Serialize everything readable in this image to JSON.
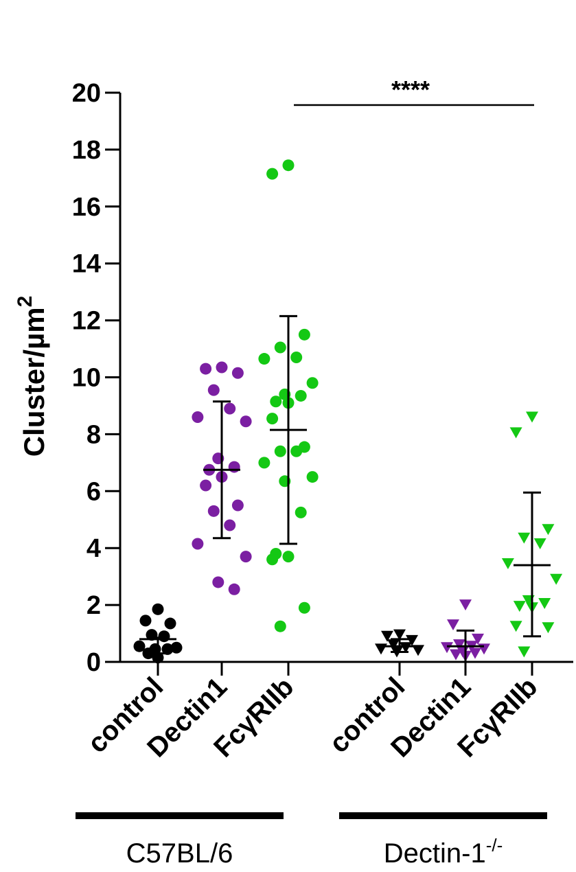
{
  "chart_data": {
    "type": "scatter",
    "ylabel": "Cluster/µm",
    "ylabel_superscript": "2",
    "ylim": [
      0,
      20
    ],
    "yticks": [
      "0",
      "2",
      "4",
      "6",
      "8",
      "10",
      "12",
      "14",
      "16",
      "18",
      "20"
    ],
    "significance": {
      "label": "****",
      "from_category": "FcγRIIb (C57BL/6)",
      "to_category": "FcγRIIb (Dectin-1-/-)"
    },
    "groups": [
      {
        "name": "C57BL/6",
        "superscript": ""
      },
      {
        "name": "Dectin-1",
        "superscript": "-/-"
      }
    ],
    "series": [
      {
        "name": "control",
        "group": "C57BL/6",
        "marker": "circle",
        "color": "#000000",
        "mean": 0.8,
        "sd_low": 0.3,
        "sd_high": 0.85,
        "values": [
          1.85,
          1.45,
          1.35,
          0.95,
          0.9,
          0.55,
          0.5,
          0.45,
          0.45,
          0.3,
          0.15
        ]
      },
      {
        "name": "Dectin1",
        "group": "C57BL/6",
        "marker": "circle",
        "color": "#7b1fa2",
        "mean": 6.75,
        "sd_low": 4.35,
        "sd_high": 9.15,
        "values": [
          10.35,
          10.3,
          10.15,
          9.55,
          8.9,
          8.6,
          8.45,
          7.15,
          6.85,
          6.75,
          6.5,
          6.2,
          5.5,
          5.3,
          4.8,
          4.15,
          3.7,
          2.8,
          2.55
        ]
      },
      {
        "name": "FcγRIIb",
        "group": "C57BL/6",
        "marker": "circle",
        "color": "#14c814",
        "mean": 8.15,
        "sd_low": 4.15,
        "sd_high": 12.15,
        "values": [
          17.45,
          17.15,
          11.5,
          11.05,
          10.7,
          10.65,
          9.8,
          9.4,
          9.35,
          9.15,
          9.1,
          8.55,
          7.55,
          7.4,
          7.4,
          7.0,
          6.5,
          6.35,
          5.25,
          3.8,
          3.7,
          3.6,
          1.9,
          1.25
        ]
      },
      {
        "name": "control",
        "group": "Dectin-1-/-",
        "marker": "triangle-down",
        "color": "#000000",
        "mean": 0.55,
        "sd_low": 0.35,
        "sd_high": 0.8,
        "values": [
          0.95,
          0.9,
          0.75,
          0.6,
          0.5,
          0.45,
          0.4,
          0.35
        ]
      },
      {
        "name": "Dectin1",
        "group": "Dectin-1-/-",
        "marker": "triangle-down",
        "color": "#7b1fa2",
        "mean": 0.55,
        "sd_low": 0.0,
        "sd_high": 1.1,
        "values": [
          2.0,
          1.3,
          0.8,
          0.6,
          0.55,
          0.5,
          0.45,
          0.35,
          0.3,
          0.25,
          0.2
        ]
      },
      {
        "name": "FcγRIIb",
        "group": "Dectin-1-/-",
        "marker": "triangle-down",
        "color": "#14c814",
        "mean": 3.4,
        "sd_low": 0.9,
        "sd_high": 5.95,
        "values": [
          8.6,
          8.05,
          4.65,
          4.35,
          4.15,
          3.45,
          2.9,
          2.15,
          2.05,
          1.95,
          1.9,
          1.25,
          1.2,
          0.35
        ]
      }
    ],
    "category_labels": [
      "control",
      "Dectin1",
      "FcγRIIb",
      "control",
      "Dectin1",
      "FcγRIIb"
    ]
  }
}
